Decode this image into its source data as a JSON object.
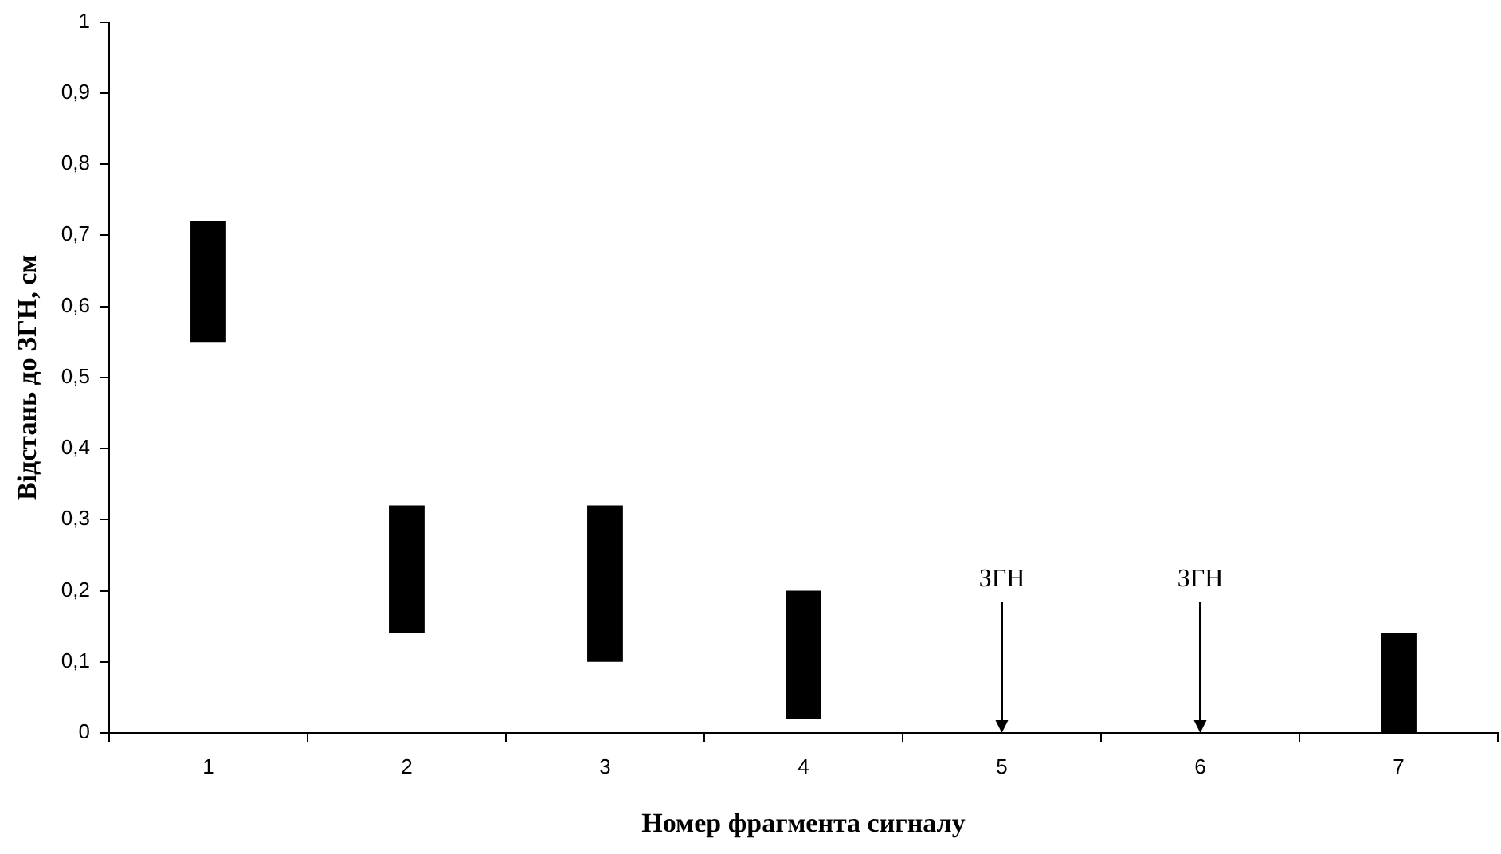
{
  "chart_data": {
    "type": "bar",
    "xlabel": "Номер фрагмента сигналу",
    "ylabel": "Відстань до ЗГН, см",
    "categories": [
      "1",
      "2",
      "3",
      "4",
      "5",
      "6",
      "7"
    ],
    "base": [
      0.55,
      0.14,
      0.1,
      0.02,
      null,
      null,
      0
    ],
    "values": [
      0.17,
      0.18,
      0.22,
      0.18,
      null,
      null,
      0.14
    ],
    "color": "#000000",
    "ylim": [
      0,
      1
    ],
    "yticks": [
      0,
      {
        "value": 0.1,
        "label": "0,1"
      },
      {
        "value": 0.2,
        "label": "0,2"
      },
      {
        "value": 0.3,
        "label": "0,3"
      },
      {
        "value": 0.4,
        "label": "0,4"
      },
      {
        "value": 0.5,
        "label": "0,5"
      },
      {
        "value": 0.6,
        "label": "0,6"
      },
      {
        "value": 0.7,
        "label": "0,7"
      },
      {
        "value": 0.8,
        "label": "0,8"
      },
      {
        "value": 0.9,
        "label": "0,9"
      },
      1
    ],
    "annotations": [
      "ЗГН",
      "ЗГН"
    ],
    "grid": false,
    "legend": false
  }
}
